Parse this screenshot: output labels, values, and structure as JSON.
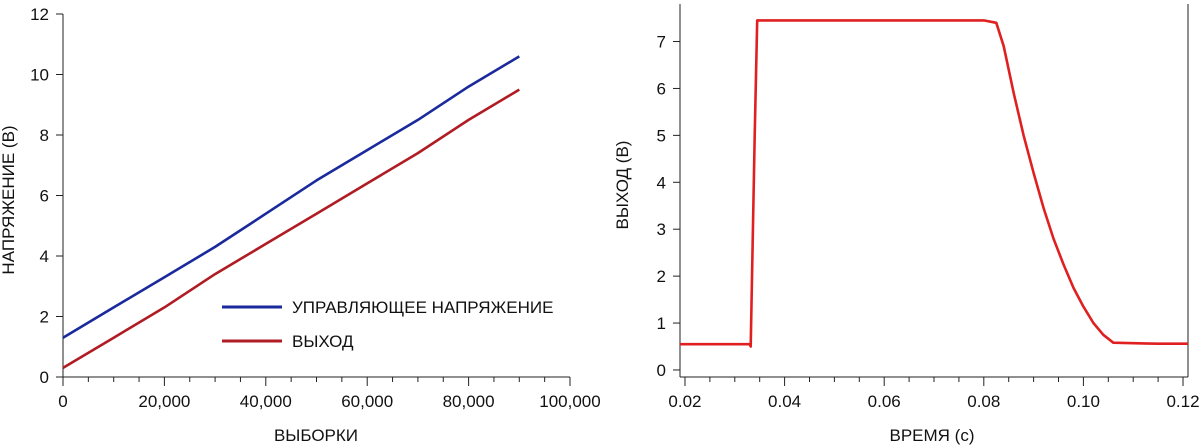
{
  "chart_data": [
    {
      "type": "line",
      "xlabel": "ВЫБОРКИ",
      "ylabel": "НАПРЯЖЕНИЕ (В)",
      "xlim": [
        0,
        100000
      ],
      "ylim": [
        0,
        12
      ],
      "x_ticks": [
        "0",
        "20,000",
        "40,000",
        "60,000",
        "80,000",
        "100,000"
      ],
      "x_tick_values": [
        0,
        20000,
        40000,
        60000,
        80000,
        100000
      ],
      "y_ticks": [
        "0",
        "2",
        "4",
        "6",
        "8",
        "10",
        "12"
      ],
      "y_tick_values": [
        0,
        2,
        4,
        6,
        8,
        10,
        12
      ],
      "legend_position": "bottom-right",
      "series": [
        {
          "name": "УПРАВЛЯЮЩЕЕ НАПРЯЖЕНИЕ",
          "color": "#1a2a9c",
          "x": [
            0,
            10000,
            20000,
            30000,
            40000,
            50000,
            60000,
            70000,
            80000,
            90000
          ],
          "y": [
            1.3,
            2.3,
            3.3,
            4.3,
            5.4,
            6.5,
            7.5,
            8.5,
            9.6,
            10.6
          ]
        },
        {
          "name": "ВЫХОД",
          "color": "#b01c24",
          "x": [
            0,
            10000,
            20000,
            30000,
            40000,
            50000,
            60000,
            70000,
            80000,
            90000
          ],
          "y": [
            0.3,
            1.3,
            2.3,
            3.4,
            4.4,
            5.4,
            6.4,
            7.4,
            8.5,
            9.5
          ]
        }
      ]
    },
    {
      "type": "line",
      "xlabel": "ВРЕМЯ (с)",
      "ylabel": "ВЫХОД (В)",
      "xlim": [
        0.019,
        0.121
      ],
      "ylim": [
        -0.15,
        7.8
      ],
      "x_ticks": [
        "0.02",
        "0.04",
        "0.06",
        "0.08",
        "0.10",
        "0.12"
      ],
      "x_tick_values": [
        0.02,
        0.04,
        0.06,
        0.08,
        0.1,
        0.12
      ],
      "y_ticks": [
        "0",
        "1",
        "2",
        "3",
        "4",
        "5",
        "6",
        "7"
      ],
      "y_tick_values": [
        0,
        1,
        2,
        3,
        4,
        5,
        6,
        7
      ],
      "series": [
        {
          "color": "#e02020",
          "x": [
            0.019,
            0.033,
            0.0332,
            0.034,
            0.0345,
            0.04,
            0.06,
            0.08,
            0.0825,
            0.084,
            0.086,
            0.088,
            0.09,
            0.092,
            0.094,
            0.096,
            0.098,
            0.1,
            0.102,
            0.104,
            0.106,
            0.11,
            0.115,
            0.121
          ],
          "y": [
            0.55,
            0.55,
            0.5,
            5.0,
            7.45,
            7.45,
            7.45,
            7.45,
            7.4,
            6.9,
            5.9,
            5.0,
            4.2,
            3.45,
            2.8,
            2.25,
            1.75,
            1.35,
            1.0,
            0.75,
            0.58,
            0.57,
            0.56,
            0.56
          ]
        }
      ]
    }
  ]
}
